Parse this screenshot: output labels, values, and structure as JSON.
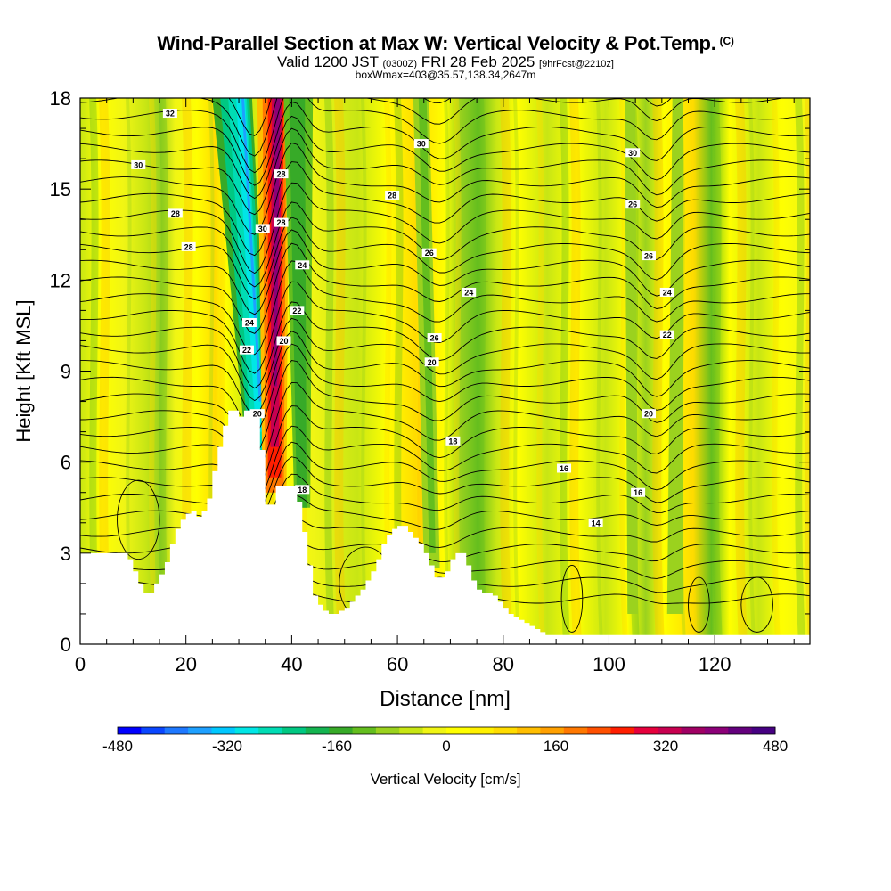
{
  "header": {
    "title": "Wind-Parallel Section at Max W: Vertical Velocity & Pot.Temp.",
    "copyright": "(C)",
    "valid_prefix": "Valid 1200 JST",
    "valid_utc": "(0300Z)",
    "valid_date": "FRI 28 Feb 2025",
    "forecast_info": "[9hrFcst@2210z]",
    "box_info": "boxWmax=403@35.57,138.34,2647m"
  },
  "chart_data": {
    "type": "heatmap",
    "xlabel": "Distance [nm]",
    "ylabel": "Height [Kft MSL]",
    "xlim": [
      0,
      138
    ],
    "ylim": [
      0,
      18
    ],
    "x_ticks": [
      0,
      20,
      40,
      60,
      80,
      100,
      120
    ],
    "y_ticks": [
      0,
      3,
      6,
      9,
      12,
      15,
      18
    ],
    "colorbar": {
      "label": "Vertical Velocity [cm/s]",
      "min": -480,
      "max": 480,
      "tick_labels": [
        "-480",
        "-320",
        "-160",
        "0",
        "160",
        "320",
        "480"
      ],
      "colors": [
        "#0000ff",
        "#0a46ff",
        "#1e78ff",
        "#1ea0ff",
        "#00c8ff",
        "#00e6e6",
        "#00dcb4",
        "#00c882",
        "#14b450",
        "#37aa28",
        "#64be1e",
        "#9bd21e",
        "#c8e614",
        "#f0f514",
        "#ffff00",
        "#fff000",
        "#ffdc00",
        "#ffbe00",
        "#ffa000",
        "#ff7800",
        "#ff5000",
        "#ff1e00",
        "#e6003c",
        "#c80050",
        "#a00064",
        "#8c0078",
        "#64007d",
        "#460082"
      ]
    },
    "terrain_kft": [
      [
        0,
        3.0
      ],
      [
        2,
        3.0
      ],
      [
        4,
        3.0
      ],
      [
        6,
        3.0
      ],
      [
        8,
        3.0
      ],
      [
        9,
        2.8
      ],
      [
        10,
        2.4
      ],
      [
        11,
        2.0
      ],
      [
        12,
        1.7
      ],
      [
        13,
        1.7
      ],
      [
        14,
        2.0
      ],
      [
        15,
        2.3
      ],
      [
        16,
        2.7
      ],
      [
        17,
        3.3
      ],
      [
        18,
        3.8
      ],
      [
        19,
        4.1
      ],
      [
        20,
        4.3
      ],
      [
        21,
        4.4
      ],
      [
        22,
        4.2
      ],
      [
        23,
        4.4
      ],
      [
        24,
        4.8
      ],
      [
        25,
        5.7
      ],
      [
        26,
        6.5
      ],
      [
        27,
        7.2
      ],
      [
        28,
        7.7
      ],
      [
        29,
        7.7
      ],
      [
        30,
        7.5
      ],
      [
        31,
        7.7
      ],
      [
        32,
        7.7
      ],
      [
        33,
        7.5
      ],
      [
        34,
        6.4
      ],
      [
        35,
        4.6
      ],
      [
        36,
        4.6
      ],
      [
        37,
        5.2
      ],
      [
        38,
        5.2
      ],
      [
        39,
        5.2
      ],
      [
        40,
        5.2
      ],
      [
        41,
        4.7
      ],
      [
        42,
        3.7
      ],
      [
        43,
        2.6
      ],
      [
        44,
        1.6
      ],
      [
        45,
        1.3
      ],
      [
        46,
        1.1
      ],
      [
        47,
        1.0
      ],
      [
        48,
        1.0
      ],
      [
        49,
        1.1
      ],
      [
        50,
        1.2
      ],
      [
        51,
        1.4
      ],
      [
        52,
        1.6
      ],
      [
        53,
        1.8
      ],
      [
        54,
        2.1
      ],
      [
        55,
        2.4
      ],
      [
        56,
        2.8
      ],
      [
        57,
        3.3
      ],
      [
        58,
        3.6
      ],
      [
        59,
        3.8
      ],
      [
        60,
        3.9
      ],
      [
        61,
        3.9
      ],
      [
        62,
        3.7
      ],
      [
        63,
        3.5
      ],
      [
        64,
        3.3
      ],
      [
        65,
        3.0
      ],
      [
        66,
        2.6
      ],
      [
        67,
        2.2
      ],
      [
        68,
        2.2
      ],
      [
        69,
        2.4
      ],
      [
        70,
        2.8
      ],
      [
        71,
        3.0
      ],
      [
        72,
        3.0
      ],
      [
        73,
        2.6
      ],
      [
        74,
        2.1
      ],
      [
        75,
        1.8
      ],
      [
        76,
        1.7
      ],
      [
        77,
        1.7
      ],
      [
        78,
        1.6
      ],
      [
        79,
        1.4
      ],
      [
        80,
        1.2
      ],
      [
        81,
        1.0
      ],
      [
        82,
        0.9
      ],
      [
        83,
        0.8
      ],
      [
        84,
        0.7
      ],
      [
        85,
        0.6
      ],
      [
        86,
        0.5
      ],
      [
        87,
        0.4
      ],
      [
        88,
        0.3
      ],
      [
        89,
        0.3
      ],
      [
        90,
        0.3
      ],
      [
        95,
        0.3
      ],
      [
        100,
        0.3
      ],
      [
        105,
        0.3
      ],
      [
        110,
        0.3
      ],
      [
        115,
        0.3
      ],
      [
        120,
        0.3
      ],
      [
        125,
        0.3
      ],
      [
        130,
        0.3
      ],
      [
        135,
        0.3
      ],
      [
        138,
        0.3
      ]
    ],
    "contour_labels": [
      {
        "text": "32",
        "x": 17,
        "y": 17.5
      },
      {
        "text": "30",
        "x": 11,
        "y": 15.8
      },
      {
        "text": "28",
        "x": 18,
        "y": 14.2
      },
      {
        "text": "28",
        "x": 20.5,
        "y": 13.1
      },
      {
        "text": "30",
        "x": 34.5,
        "y": 13.7
      },
      {
        "text": "28",
        "x": 38,
        "y": 15.5
      },
      {
        "text": "28",
        "x": 38,
        "y": 13.9
      },
      {
        "text": "24",
        "x": 42,
        "y": 12.5
      },
      {
        "text": "24",
        "x": 32,
        "y": 10.6
      },
      {
        "text": "22",
        "x": 31.5,
        "y": 9.7
      },
      {
        "text": "22",
        "x": 41,
        "y": 11.0
      },
      {
        "text": "20",
        "x": 38.5,
        "y": 10.0
      },
      {
        "text": "20",
        "x": 33.5,
        "y": 7.6
      },
      {
        "text": "18",
        "x": 42,
        "y": 5.1
      },
      {
        "text": "30",
        "x": 64.5,
        "y": 16.5
      },
      {
        "text": "28",
        "x": 59,
        "y": 14.8
      },
      {
        "text": "26",
        "x": 66,
        "y": 12.9
      },
      {
        "text": "24",
        "x": 73.5,
        "y": 11.6
      },
      {
        "text": "26",
        "x": 67,
        "y": 10.1
      },
      {
        "text": "20",
        "x": 66.5,
        "y": 9.3
      },
      {
        "text": "18",
        "x": 70.5,
        "y": 6.7
      },
      {
        "text": "30",
        "x": 104.5,
        "y": 16.2
      },
      {
        "text": "26",
        "x": 104.5,
        "y": 14.5
      },
      {
        "text": "26",
        "x": 107.5,
        "y": 12.8
      },
      {
        "text": "24",
        "x": 111,
        "y": 11.6
      },
      {
        "text": "22",
        "x": 111,
        "y": 10.2
      },
      {
        "text": "20",
        "x": 107.5,
        "y": 7.6
      },
      {
        "text": "16",
        "x": 91.5,
        "y": 5.8
      },
      {
        "text": "16",
        "x": 105.5,
        "y": 5.0
      },
      {
        "text": "14",
        "x": 97.5,
        "y": 4.0
      }
    ]
  }
}
